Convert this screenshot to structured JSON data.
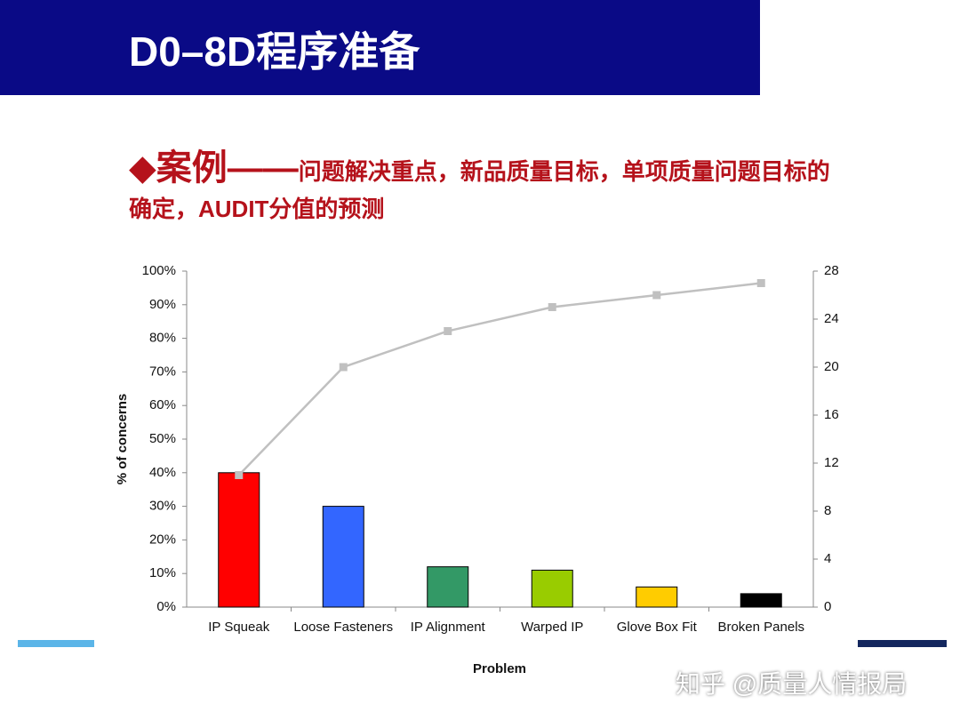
{
  "slide": {
    "title": "D0–8D程序准备",
    "heading_emphasis": "案例——",
    "heading_rest": "问题解决重点，新品质量目标，单项质量问题目标的确定，AUDIT分值的预测",
    "watermark": "知乎 @质量人情报局"
  },
  "chart_data": {
    "type": "bar",
    "categories": [
      "IP Squeak",
      "Loose Fasteners",
      "IP Alignment",
      "Warped IP",
      "Glove Box Fit",
      "Broken Panels"
    ],
    "series": [
      {
        "type": "bar",
        "colors": [
          "#ff0000",
          "#3366ff",
          "#339966",
          "#99cc00",
          "#ffcc00",
          "#000000"
        ],
        "values": [
          40,
          30,
          12,
          11,
          6,
          4
        ]
      },
      {
        "type": "line",
        "axis": "y2",
        "color": "#c0c0c0",
        "values": [
          11,
          20,
          23,
          25,
          26,
          27
        ]
      }
    ],
    "x_label": "Problem",
    "y_label": "% of concerns",
    "ylim": [
      0,
      100
    ],
    "yticks": [
      {
        "value": 0,
        "label": "0%"
      },
      {
        "value": 10,
        "label": "10%"
      },
      {
        "value": 20,
        "label": "20%"
      },
      {
        "value": 30,
        "label": "30%"
      },
      {
        "value": 40,
        "label": "40%"
      },
      {
        "value": 50,
        "label": "50%"
      },
      {
        "value": 60,
        "label": "60%"
      },
      {
        "value": 70,
        "label": "70%"
      },
      {
        "value": 80,
        "label": "80%"
      },
      {
        "value": 90,
        "label": "90%"
      },
      {
        "value": 100,
        "label": "100%"
      }
    ],
    "y2lim": [
      0,
      28
    ],
    "y2ticks": [
      0,
      4,
      8,
      12,
      16,
      20,
      24,
      28
    ],
    "grid": false
  }
}
